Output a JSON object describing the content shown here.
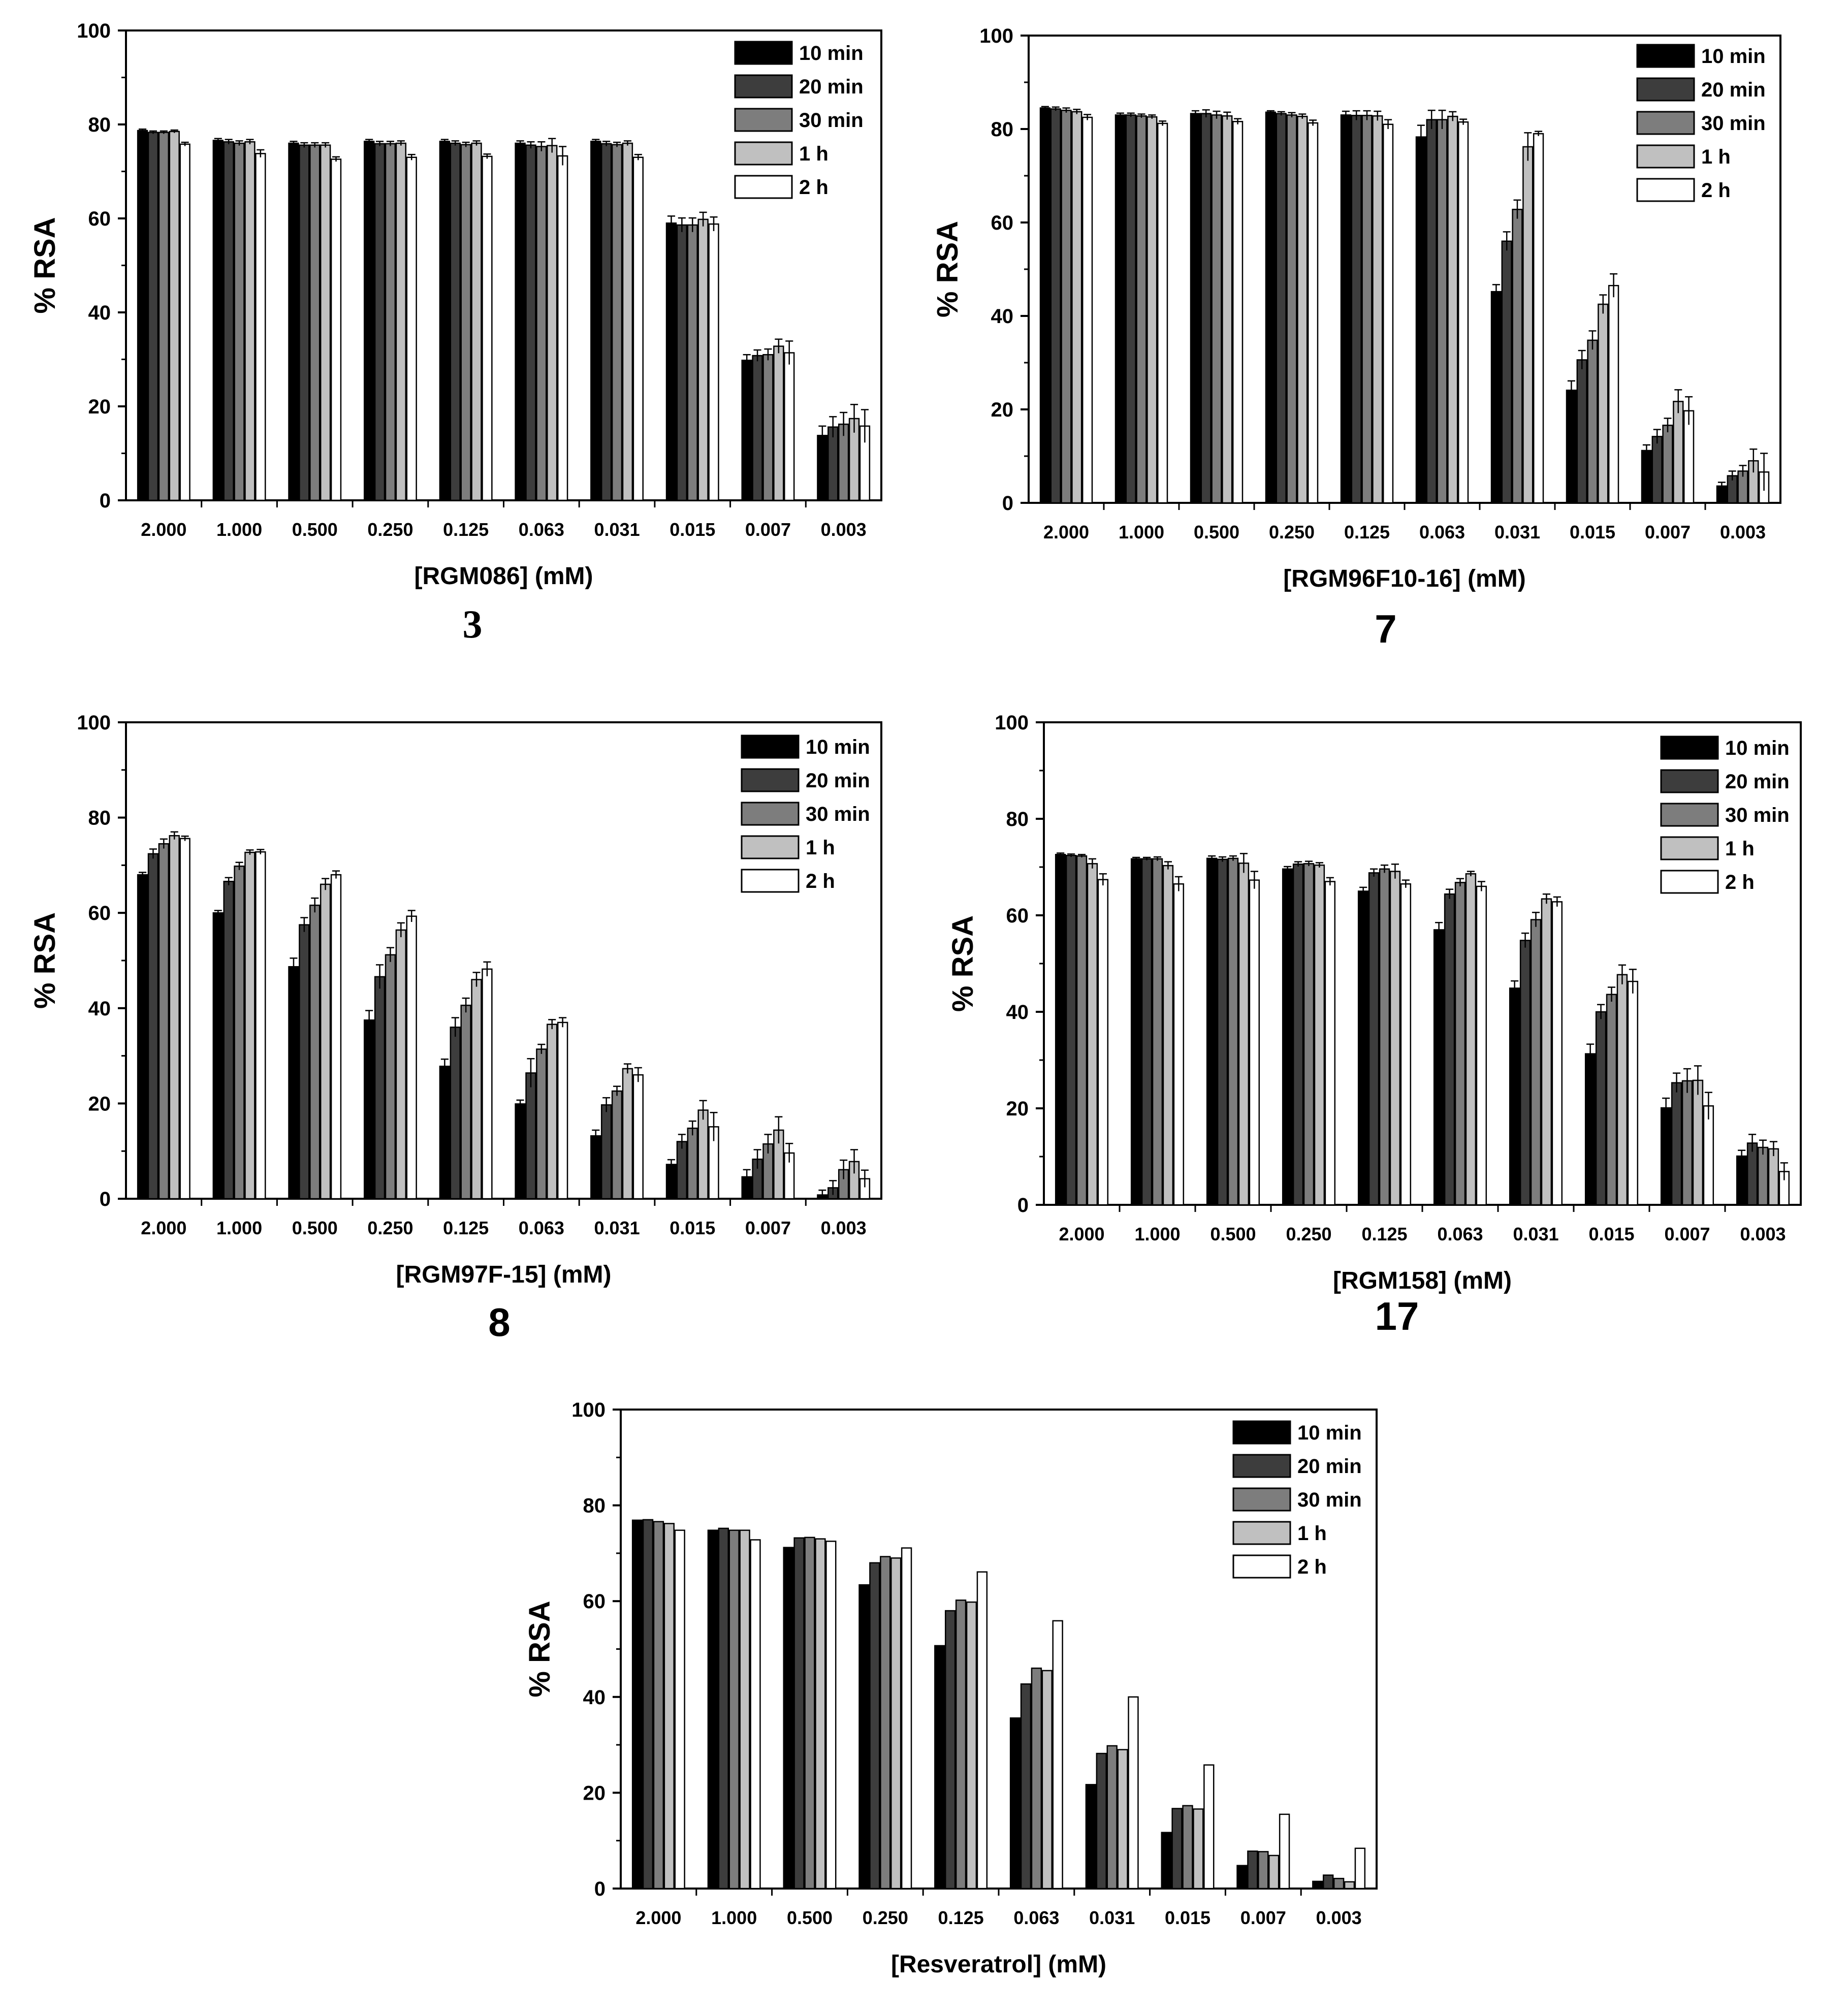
{
  "colors": {
    "series": [
      "#000000",
      "#3d3d3d",
      "#7d7d7d",
      "#c0c0c0",
      "#ffffff"
    ],
    "stroke": "#000000"
  },
  "chart_data": [
    {
      "type": "bar",
      "panel_label": "3",
      "xlabel": "[RGM086] (mM)",
      "ylabel": "% RSA",
      "ylim": [
        0,
        100
      ],
      "yticks": [
        "0",
        "20",
        "40",
        "60",
        "80",
        "100"
      ],
      "categories": [
        "2.000",
        "1.000",
        "0.500",
        "0.250",
        "0.125",
        "0.063",
        "0.031",
        "0.015",
        "0.007",
        "0.003"
      ],
      "legend": {
        "position": "top-right"
      },
      "series": [
        {
          "name": "10 min",
          "values": [
            78.7,
            76.6,
            76.0,
            76.4,
            76.4,
            76.0,
            76.4,
            59.0,
            29.8,
            13.8
          ],
          "errors": [
            0.3,
            0.4,
            0.4,
            0.4,
            0.4,
            0.5,
            0.4,
            1.5,
            1.2,
            2.0
          ]
        },
        {
          "name": "20 min",
          "values": [
            78.3,
            76.3,
            75.6,
            75.9,
            76.0,
            75.6,
            75.9,
            58.6,
            30.8,
            15.6
          ],
          "errors": [
            0.3,
            0.5,
            0.5,
            0.5,
            0.5,
            0.7,
            0.5,
            1.5,
            1.2,
            2.2
          ]
        },
        {
          "name": "30 min",
          "values": [
            78.3,
            76.0,
            75.6,
            75.9,
            75.7,
            75.3,
            75.7,
            58.6,
            31.0,
            16.2
          ],
          "errors": [
            0.3,
            0.5,
            0.5,
            0.5,
            0.5,
            1.0,
            0.5,
            1.5,
            1.2,
            2.5
          ]
        },
        {
          "name": "1 h",
          "values": [
            78.5,
            76.3,
            75.6,
            76.0,
            76.0,
            75.5,
            76.0,
            59.8,
            32.8,
            17.4
          ],
          "errors": [
            0.3,
            0.5,
            0.5,
            0.5,
            0.5,
            1.5,
            0.5,
            1.5,
            1.5,
            3.0
          ]
        },
        {
          "name": "2 h",
          "values": [
            75.8,
            73.8,
            72.6,
            73.0,
            73.2,
            73.3,
            73.0,
            58.8,
            31.4,
            15.8
          ],
          "errors": [
            0.4,
            0.8,
            0.5,
            0.6,
            0.5,
            2.0,
            0.6,
            1.5,
            2.5,
            3.5
          ]
        }
      ]
    },
    {
      "type": "bar",
      "panel_label": "7",
      "xlabel": "[RGM96F10-16] (mM)",
      "ylabel": "% RSA",
      "ylim": [
        0,
        100
      ],
      "yticks": [
        "0",
        "20",
        "40",
        "60",
        "80",
        "100"
      ],
      "categories": [
        "2.000",
        "1.000",
        "0.500",
        "0.250",
        "0.125",
        "0.063",
        "0.031",
        "0.015",
        "0.007",
        "0.003"
      ],
      "legend": {
        "position": "top-right"
      },
      "series": [
        {
          "name": "10 min",
          "values": [
            84.5,
            83.0,
            83.3,
            83.6,
            83.0,
            78.3,
            45.2,
            24.1,
            11.2,
            3.6
          ],
          "errors": [
            0.3,
            0.4,
            0.6,
            0.3,
            0.8,
            2.5,
            1.5,
            2.0,
            1.2,
            0.8
          ]
        },
        {
          "name": "20 min",
          "values": [
            84.3,
            83.0,
            83.3,
            83.3,
            82.9,
            82.0,
            56.0,
            30.6,
            14.2,
            5.8
          ],
          "errors": [
            0.4,
            0.4,
            0.8,
            0.4,
            1.0,
            2.0,
            2.0,
            2.0,
            1.5,
            1.0
          ]
        },
        {
          "name": "30 min",
          "values": [
            84.0,
            82.8,
            83.0,
            83.0,
            82.9,
            82.0,
            62.8,
            34.8,
            16.6,
            6.8
          ],
          "errors": [
            0.5,
            0.4,
            0.8,
            0.5,
            1.0,
            2.0,
            2.0,
            2.0,
            1.5,
            1.2
          ]
        },
        {
          "name": "1 h",
          "values": [
            83.7,
            82.6,
            82.8,
            82.7,
            82.8,
            82.7,
            76.2,
            42.5,
            21.7,
            9.0
          ],
          "errors": [
            0.5,
            0.4,
            0.8,
            0.5,
            1.0,
            1.0,
            3.0,
            2.0,
            2.5,
            2.5
          ]
        },
        {
          "name": "2 h",
          "values": [
            82.5,
            81.2,
            81.6,
            81.3,
            81.0,
            81.5,
            79.0,
            46.5,
            19.7,
            6.6
          ],
          "errors": [
            0.6,
            0.5,
            0.6,
            0.6,
            1.0,
            0.6,
            0.5,
            2.5,
            3.0,
            4.0
          ]
        }
      ]
    },
    {
      "type": "bar",
      "panel_label": "8",
      "xlabel": "[RGM97F-15] (mM)",
      "ylabel": "% RSA",
      "ylim": [
        0,
        100
      ],
      "yticks": [
        "0",
        "20",
        "40",
        "60",
        "80",
        "100"
      ],
      "categories": [
        "2.000",
        "1.000",
        "0.500",
        "0.250",
        "0.125",
        "0.063",
        "0.031",
        "0.015",
        "0.007",
        "0.003"
      ],
      "legend": {
        "position": "top-right"
      },
      "series": [
        {
          "name": "10 min",
          "values": [
            68.0,
            60.0,
            48.7,
            37.5,
            27.8,
            19.9,
            13.2,
            7.2,
            4.6,
            0.8
          ],
          "errors": [
            0.5,
            0.5,
            1.8,
            2.0,
            1.5,
            0.8,
            1.2,
            1.0,
            1.5,
            1.0
          ]
        },
        {
          "name": "20 min",
          "values": [
            72.4,
            66.6,
            57.5,
            46.6,
            36.0,
            26.4,
            19.7,
            12.0,
            8.3,
            2.3
          ],
          "errors": [
            1.0,
            0.8,
            1.5,
            2.5,
            2.0,
            3.0,
            1.5,
            1.5,
            2.0,
            1.5
          ]
        },
        {
          "name": "30 min",
          "values": [
            74.5,
            69.8,
            61.6,
            51.2,
            40.6,
            31.4,
            22.6,
            14.8,
            11.5,
            6.1
          ],
          "errors": [
            1.0,
            0.8,
            1.5,
            1.5,
            1.5,
            1.0,
            1.0,
            1.5,
            2.0,
            2.0
          ]
        },
        {
          "name": "1 h",
          "values": [
            76.2,
            72.7,
            66.0,
            56.4,
            46.0,
            36.6,
            27.3,
            18.6,
            14.4,
            7.8
          ],
          "errors": [
            0.8,
            0.5,
            1.2,
            1.5,
            1.5,
            1.0,
            1.0,
            2.0,
            2.8,
            2.5
          ]
        },
        {
          "name": "2 h",
          "values": [
            75.6,
            72.8,
            68.0,
            59.3,
            48.2,
            37.0,
            26.0,
            15.1,
            9.6,
            4.2
          ],
          "errors": [
            0.5,
            0.5,
            0.8,
            1.2,
            1.5,
            1.0,
            1.5,
            3.0,
            2.0,
            1.8
          ]
        }
      ]
    },
    {
      "type": "bar",
      "panel_label": "17",
      "xlabel": "[RGM158] (mM)",
      "ylabel": "% RSA",
      "ylim": [
        0,
        100
      ],
      "yticks": [
        "0",
        "20",
        "40",
        "60",
        "80",
        "100"
      ],
      "categories": [
        "2.000",
        "1.000",
        "0.500",
        "0.250",
        "0.125",
        "0.063",
        "0.031",
        "0.015",
        "0.007",
        "0.003"
      ],
      "legend": {
        "position": "top-right"
      },
      "series": [
        {
          "name": "10 min",
          "values": [
            72.6,
            71.7,
            71.8,
            69.6,
            65.0,
            57.0,
            44.9,
            31.3,
            20.1,
            10.1
          ],
          "errors": [
            0.3,
            0.3,
            0.5,
            0.5,
            0.8,
            1.5,
            1.5,
            2.0,
            2.0,
            1.2
          ]
        },
        {
          "name": "20 min",
          "values": [
            72.4,
            71.7,
            71.6,
            70.6,
            68.8,
            64.4,
            54.8,
            40.0,
            25.3,
            12.8
          ],
          "errors": [
            0.3,
            0.3,
            0.5,
            0.5,
            0.8,
            1.0,
            1.5,
            1.5,
            2.0,
            1.8
          ]
        },
        {
          "name": "30 min",
          "values": [
            72.3,
            71.7,
            71.8,
            70.7,
            69.6,
            66.8,
            59.1,
            43.6,
            25.7,
            11.9
          ],
          "errors": [
            0.3,
            0.4,
            0.5,
            0.5,
            0.8,
            0.8,
            1.5,
            1.5,
            2.5,
            1.5
          ]
        },
        {
          "name": "1 h",
          "values": [
            70.7,
            70.3,
            70.8,
            70.4,
            69.1,
            68.6,
            63.4,
            47.7,
            25.8,
            11.6
          ],
          "errors": [
            1.0,
            0.8,
            2.0,
            0.5,
            1.5,
            0.5,
            1.0,
            2.0,
            3.0,
            1.5
          ]
        },
        {
          "name": "2 h",
          "values": [
            67.4,
            66.5,
            67.3,
            67.0,
            66.5,
            66.0,
            62.8,
            46.3,
            20.5,
            6.9
          ],
          "errors": [
            1.2,
            1.5,
            1.8,
            0.8,
            0.8,
            1.0,
            1.0,
            2.5,
            2.8,
            1.8
          ]
        }
      ]
    },
    {
      "type": "bar",
      "panel_label": "",
      "xlabel": "[Resveratrol] (mM)",
      "ylabel": "% RSA",
      "ylim": [
        0,
        100
      ],
      "yticks": [
        "0",
        "20",
        "40",
        "60",
        "80",
        "100"
      ],
      "categories": [
        "2.000",
        "1.000",
        "0.500",
        "0.250",
        "0.125",
        "0.063",
        "0.031",
        "0.015",
        "0.007",
        "0.003"
      ],
      "legend": {
        "position": "top-right"
      },
      "series": [
        {
          "name": "10 min",
          "values": [
            76.9,
            74.8,
            71.2,
            63.4,
            50.7,
            35.6,
            21.7,
            11.7,
            4.8,
            1.5
          ]
        },
        {
          "name": "20 min",
          "values": [
            77.0,
            75.2,
            73.2,
            68.0,
            58.0,
            42.7,
            28.2,
            16.7,
            7.8,
            2.8
          ]
        },
        {
          "name": "30 min",
          "values": [
            76.6,
            74.8,
            73.3,
            69.3,
            60.2,
            46.0,
            29.8,
            17.3,
            7.7,
            2.1
          ]
        },
        {
          "name": "1 h",
          "values": [
            76.2,
            74.8,
            73.0,
            69.0,
            59.8,
            45.5,
            29.0,
            16.6,
            6.9,
            1.4
          ]
        },
        {
          "name": "2 h",
          "values": [
            74.8,
            72.8,
            72.5,
            71.1,
            66.1,
            55.9,
            40.0,
            25.8,
            15.5,
            8.4
          ]
        }
      ]
    }
  ]
}
